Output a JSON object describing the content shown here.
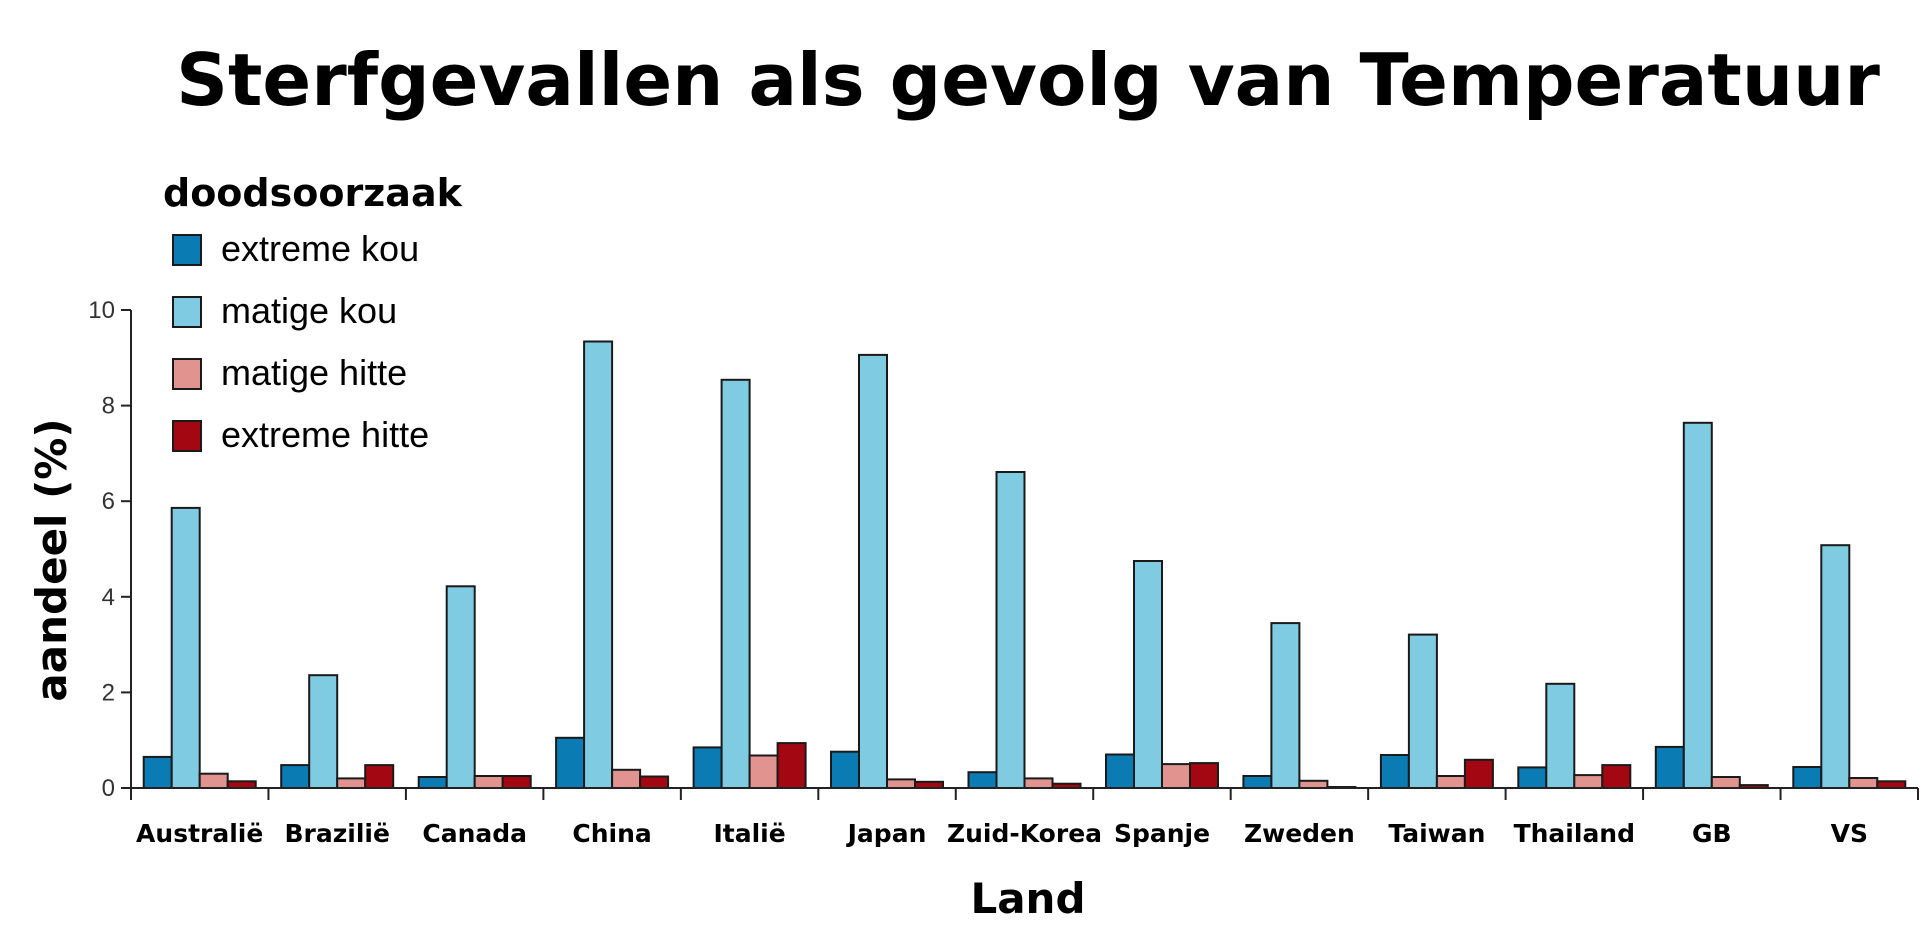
{
  "chart_data": {
    "type": "bar",
    "title": "Sterfgevallen als gevolg van Temperatuur",
    "xlabel": "Land",
    "ylabel": "aandeel (%)",
    "ylim": [
      0,
      10
    ],
    "yticks": [
      "0",
      "2",
      "4",
      "6",
      "8",
      "10"
    ],
    "grid": false,
    "legend": {
      "title": "doodsoorzaak",
      "placement": "top-left"
    },
    "categories": [
      "Australië",
      "Brazilië",
      "Canada",
      "China",
      "Italië",
      "Japan",
      "Zuid-Korea",
      "Spanje",
      "Zweden",
      "Taiwan",
      "Thailand",
      "GB",
      "VS"
    ],
    "series": [
      {
        "name": "extreme kou",
        "color": "#0a7bb3",
        "values": [
          0.65,
          0.48,
          0.23,
          1.05,
          0.85,
          0.76,
          0.33,
          0.7,
          0.25,
          0.69,
          0.43,
          0.86,
          0.44
        ]
      },
      {
        "name": "matige kou",
        "color": "#7ecbe2",
        "values": [
          5.86,
          2.36,
          4.22,
          9.34,
          8.54,
          9.06,
          6.61,
          4.75,
          3.45,
          3.21,
          2.18,
          7.64,
          5.08
        ]
      },
      {
        "name": "matige hitte",
        "color": "#e0938f",
        "values": [
          0.3,
          0.2,
          0.25,
          0.38,
          0.68,
          0.18,
          0.2,
          0.5,
          0.15,
          0.25,
          0.27,
          0.23,
          0.21
        ]
      },
      {
        "name": "extreme hitte",
        "color": "#a30812",
        "values": [
          0.14,
          0.48,
          0.25,
          0.24,
          0.94,
          0.13,
          0.09,
          0.52,
          0.02,
          0.59,
          0.48,
          0.06,
          0.14
        ]
      }
    ]
  }
}
